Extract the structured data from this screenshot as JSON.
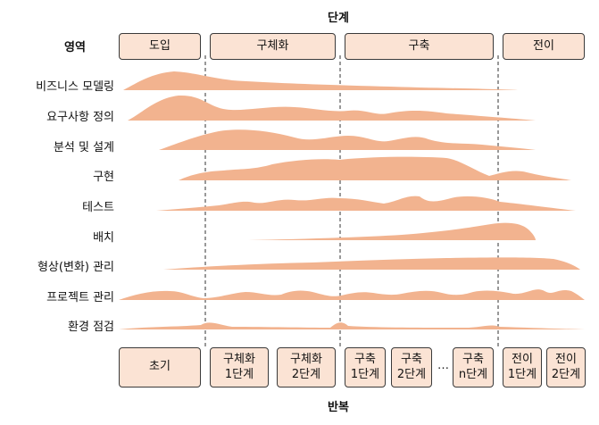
{
  "header": {
    "top_title": "단계",
    "left_title": "영역",
    "bottom_title": "반복"
  },
  "phases": [
    "도입",
    "구체화",
    "구축",
    "전이"
  ],
  "disciplines": [
    "비즈니스 모델링",
    "요구사항 정의",
    "분석 및 설계",
    "구현",
    "테스트",
    "배치",
    "형상(변화) 관리",
    "프로젝트 관리",
    "환경 점검"
  ],
  "iterations": [
    {
      "l1": "초기",
      "l2": ""
    },
    {
      "l1": "구체화",
      "l2": "1단계"
    },
    {
      "l1": "구체화",
      "l2": "2단계"
    },
    {
      "l1": "구축",
      "l2": "1단계"
    },
    {
      "l1": "구축",
      "l2": "2단계"
    },
    {
      "l1": "구축",
      "l2": "n단계"
    },
    {
      "l1": "전이",
      "l2": "1단계"
    },
    {
      "l1": "전이",
      "l2": "2단계"
    }
  ],
  "ellipsis": "…",
  "colors": {
    "hump": "#f2b38f",
    "box_fill": "#fbe3d4",
    "border": "#3a3a3a"
  }
}
